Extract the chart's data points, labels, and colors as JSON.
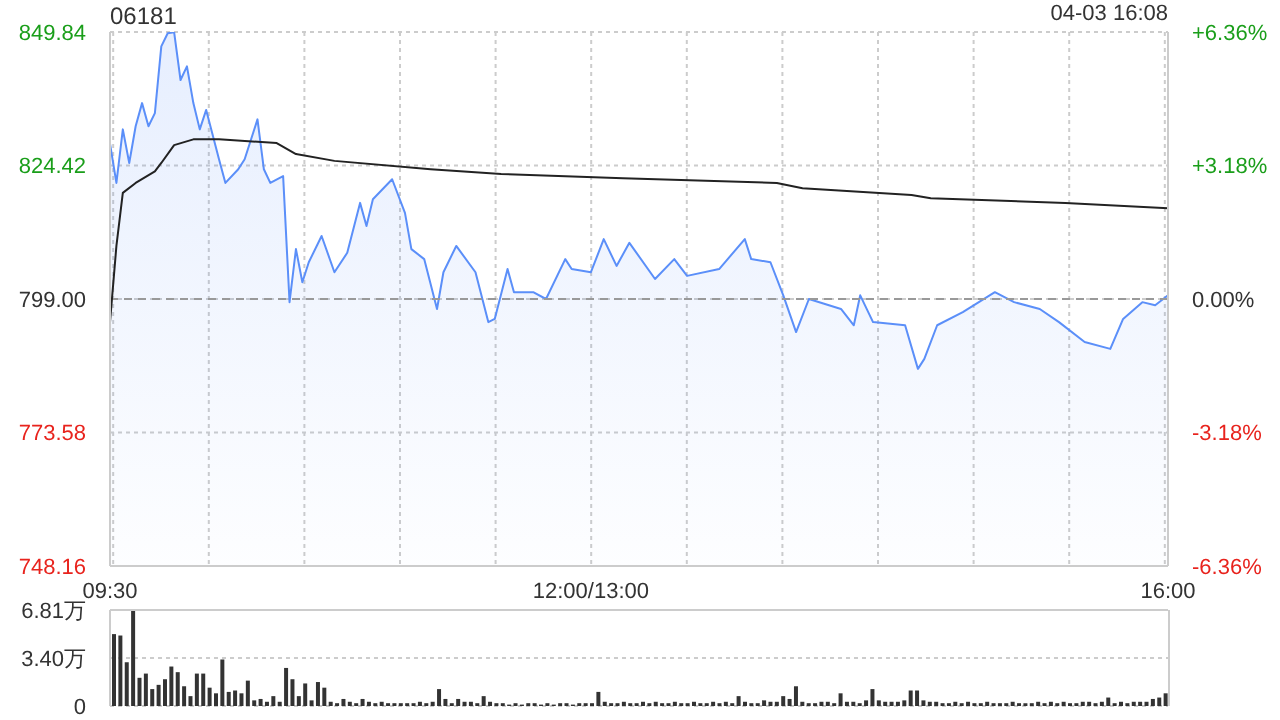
{
  "chart_data": [
    {
      "type": "area",
      "title": "06181",
      "annotations": [
        "04-03 16:08"
      ],
      "categories": [
        "09:30",
        null,
        null,
        null,
        null,
        null,
        null,
        null,
        null,
        null,
        null,
        null,
        null,
        null,
        null,
        null,
        null,
        null,
        null,
        null,
        null,
        null,
        null,
        null,
        null,
        null,
        null,
        null,
        null,
        null,
        null,
        null,
        null,
        null,
        null,
        null,
        null,
        null,
        null,
        null,
        null,
        null,
        null,
        null,
        null,
        null,
        null,
        null,
        null,
        null,
        null,
        null,
        null,
        null,
        null,
        null,
        null,
        null,
        null,
        null,
        null,
        null,
        null,
        null,
        null,
        null,
        null,
        null,
        null,
        null,
        null,
        null,
        null,
        null,
        null,
        "12:00/13:00",
        null,
        null,
        null,
        null,
        null,
        null,
        null,
        null,
        null,
        null,
        null,
        null,
        null,
        null,
        null,
        null,
        null,
        null,
        null,
        null,
        null,
        null,
        null,
        null,
        null,
        null,
        null,
        null,
        null,
        null,
        null,
        null,
        null,
        null,
        null,
        null,
        null,
        null,
        null,
        null,
        null,
        null,
        null,
        null,
        null,
        null,
        null,
        null,
        null,
        null,
        null,
        null,
        null,
        null,
        null,
        null,
        null,
        null,
        null,
        null,
        null,
        null,
        null,
        null,
        null,
        null,
        null,
        null,
        null,
        null,
        null,
        null,
        null,
        null,
        null,
        null,
        null,
        null,
        null,
        null,
        null,
        null,
        null,
        null,
        null,
        null,
        null,
        null,
        null,
        "16:00"
      ],
      "ylim": [
        748.16,
        849.84
      ],
      "yticks": [
        748.16,
        773.58,
        {
          "value": 799,
          "label": "799.00"
        },
        824.42,
        849.84
      ],
      "y2lim": [
        -6.36,
        6.36
      ],
      "y2ticks": [
        {
          "value": -6.36,
          "label": "-6.36%"
        },
        {
          "value": -3.18,
          "label": "-3.18%"
        },
        {
          "value": 0,
          "label": "0.00%"
        },
        {
          "value": 3.18,
          "label": "+3.18%"
        },
        {
          "value": 6.36,
          "label": "+6.36%"
        }
      ],
      "grid": true,
      "line_style": "solid",
      "ref_lines": [
        {
          "axis": "y",
          "value": 799,
          "color": "#999999",
          "line_style": "dashed"
        }
      ],
      "series": [
        {
          "color": "#5b8ff9",
          "values": [
            828.6,
            821.1,
            831.3,
            824.9,
            831.9,
            836.3,
            831.9,
            834.4,
            847.1,
            849.6,
            849.8,
            840.7,
            843.3,
            836.3,
            831.3,
            835.0,
            null,
            825.6,
            821.1,
            null,
            823.7,
            825.6,
            null,
            833.2,
            823.7,
            821.1,
            null,
            822.4,
            798.4,
            808.5,
            802.2,
            806.0,
            null,
            811.0,
            null,
            804.1,
            null,
            807.8,
            null,
            817.3,
            812.9,
            818.0,
            null,
            null,
            821.8,
            null,
            815.4,
            808.5,
            null,
            806.6,
            null,
            797.1,
            804.1,
            null,
            809.1,
            null,
            null,
            804.1,
            null,
            794.6,
            795.2,
            null,
            804.7,
            800.3,
            null,
            null,
            800.3,
            null,
            799.0,
            null,
            null,
            806.6,
            804.7,
            null,
            null,
            804.1,
            null,
            810.4,
            null,
            805.3,
            null,
            809.7,
            null,
            null,
            null,
            802.8,
            null,
            null,
            806.6,
            null,
            803.4,
            null,
            null,
            null,
            null,
            804.7,
            null,
            null,
            null,
            810.4,
            806.6,
            null,
            null,
            806.0,
            null,
            799.7,
            null,
            792.7,
            null,
            799.0,
            null,
            null,
            null,
            null,
            797.1,
            null,
            794.0,
            799.7,
            null,
            794.6,
            null,
            null,
            null,
            null,
            794.0,
            null,
            785.7,
            787.6,
            null,
            794.0,
            null,
            null,
            null,
            796.5,
            null,
            null,
            null,
            null,
            800.3,
            null,
            null,
            798.4,
            null,
            null,
            null,
            797.1,
            null,
            null,
            794.6,
            null,
            null,
            null,
            790.8,
            null,
            null,
            null,
            789.5,
            null,
            795.2,
            null,
            null,
            798.4,
            null,
            797.8,
            null,
            799.7
          ]
        },
        {
          "type": "line",
          "color": "#222222",
          "values": [
            794.6,
            809.1,
            819.2,
            null,
            821.1,
            null,
            null,
            823.3,
            824.9,
            null,
            828.3,
            null,
            null,
            829.4,
            null,
            null,
            null,
            829.4,
            null,
            null,
            null,
            null,
            null,
            null,
            null,
            null,
            828.7,
            null,
            null,
            826.6,
            null,
            null,
            null,
            null,
            null,
            825.3,
            null,
            null,
            null,
            null,
            null,
            null,
            null,
            null,
            null,
            null,
            null,
            null,
            null,
            null,
            823.7,
            null,
            null,
            null,
            null,
            null,
            null,
            null,
            null,
            null,
            null,
            822.8,
            null,
            null,
            null,
            null,
            null,
            null,
            null,
            null,
            null,
            null,
            null,
            null,
            null,
            null,
            null,
            null,
            null,
            null,
            822.0,
            null,
            null,
            null,
            null,
            null,
            null,
            null,
            null,
            null,
            null,
            null,
            null,
            null,
            null,
            null,
            null,
            null,
            null,
            null,
            null,
            null,
            null,
            null,
            821.1,
            null,
            null,
            null,
            820.1,
            null,
            null,
            null,
            null,
            null,
            null,
            null,
            null,
            null,
            null,
            null,
            null,
            null,
            null,
            null,
            null,
            818.8,
            null,
            null,
            818.2,
            null,
            null,
            null,
            null,
            null,
            null,
            null,
            null,
            null,
            null,
            null,
            null,
            null,
            null,
            null,
            null,
            null,
            null,
            null,
            null,
            817.3,
            null,
            null,
            null,
            null,
            null,
            null,
            null,
            null,
            null,
            null,
            null,
            null,
            null,
            null,
            null,
            816.3
          ]
        }
      ]
    },
    {
      "type": "bar",
      "ylim": [
        0,
        6.81
      ],
      "yticks": [
        0,
        {
          "value": 3.4,
          "label": "3.40万"
        },
        {
          "value": 6.81,
          "label": "6.81万"
        }
      ],
      "grid": "y",
      "tick_labels": "y",
      "categories": [
        null,
        null,
        null,
        null,
        null,
        null,
        null,
        null,
        null,
        null,
        null,
        null,
        null,
        null,
        null,
        null,
        null,
        null,
        null,
        null,
        null,
        null,
        null,
        null,
        null,
        null,
        null,
        null,
        null,
        null,
        null,
        null,
        null,
        null,
        null,
        null,
        null,
        null,
        null,
        null,
        null,
        null,
        null,
        null,
        null,
        null,
        null,
        null,
        null,
        null,
        null,
        null,
        null,
        null,
        null,
        null,
        null,
        null,
        null,
        null,
        null,
        null,
        null,
        null,
        null,
        null,
        null,
        null,
        null,
        null,
        null,
        null,
        null,
        null,
        null,
        null,
        null,
        null,
        null,
        null,
        null,
        null,
        null,
        null,
        null,
        null,
        null,
        null,
        null,
        null,
        null,
        null,
        null,
        null,
        null,
        null,
        null,
        null,
        null,
        null,
        null,
        null,
        null,
        null,
        null,
        null,
        null,
        null,
        null,
        null,
        null,
        null,
        null,
        null,
        null,
        null,
        null,
        null,
        null,
        null,
        null,
        null,
        null,
        null,
        null,
        null,
        null,
        null,
        null,
        null,
        null,
        null,
        null,
        null,
        null,
        null,
        null,
        null,
        null,
        null,
        null,
        null,
        null,
        null,
        null,
        null,
        null,
        null,
        null,
        null,
        null,
        null,
        null,
        null,
        null,
        null,
        null,
        null,
        null,
        null,
        null,
        null,
        null,
        null,
        null,
        null
      ],
      "series": [
        {
          "color": "#333333",
          "values": [
            5.1,
            5.0,
            3.1,
            6.8,
            2.0,
            2.3,
            1.2,
            1.5,
            1.9,
            2.8,
            2.4,
            1.4,
            0.7,
            2.3,
            2.3,
            1.3,
            0.9,
            3.3,
            1.0,
            1.1,
            0.9,
            1.8,
            0.4,
            0.5,
            0.3,
            0.7,
            0.3,
            2.7,
            1.9,
            0.7,
            1.6,
            0.4,
            1.7,
            1.3,
            0.3,
            0.2,
            0.5,
            0.3,
            0.2,
            0.5,
            0.3,
            0.2,
            0.3,
            0.2,
            0.2,
            0.2,
            0.2,
            0.2,
            0.3,
            0.2,
            0.3,
            1.2,
            0.5,
            0.2,
            0.5,
            0.3,
            0.3,
            0.2,
            0.7,
            0.3,
            0.2,
            0.2,
            0.1,
            0.2,
            0.1,
            0.2,
            0.2,
            0.1,
            0.2,
            0.1,
            0.2,
            0.2,
            0.1,
            0.2,
            0.2,
            0.2,
            1.0,
            0.3,
            0.2,
            0.2,
            0.3,
            0.2,
            0.2,
            0.3,
            0.2,
            0.3,
            0.2,
            0.2,
            0.3,
            0.2,
            0.2,
            0.3,
            0.2,
            0.2,
            0.3,
            0.2,
            0.3,
            0.2,
            0.7,
            0.3,
            0.2,
            0.2,
            0.4,
            0.3,
            0.3,
            0.7,
            0.5,
            1.4,
            0.3,
            0.2,
            0.2,
            0.3,
            0.3,
            0.2,
            0.9,
            0.3,
            0.3,
            0.2,
            0.4,
            1.2,
            0.4,
            0.3,
            0.3,
            0.3,
            0.4,
            1.1,
            1.1,
            0.4,
            0.3,
            0.3,
            0.2,
            0.2,
            0.3,
            0.2,
            0.3,
            0.2,
            0.2,
            0.3,
            0.2,
            0.2,
            0.2,
            0.3,
            0.2,
            0.2,
            0.2,
            0.3,
            0.2,
            0.3,
            0.2,
            0.3,
            0.2,
            0.2,
            0.3,
            0.3,
            0.2,
            0.3,
            0.6,
            0.2,
            0.3,
            0.2,
            0.3,
            0.3,
            0.3,
            0.5,
            0.6,
            0.9
          ]
        }
      ]
    }
  ]
}
